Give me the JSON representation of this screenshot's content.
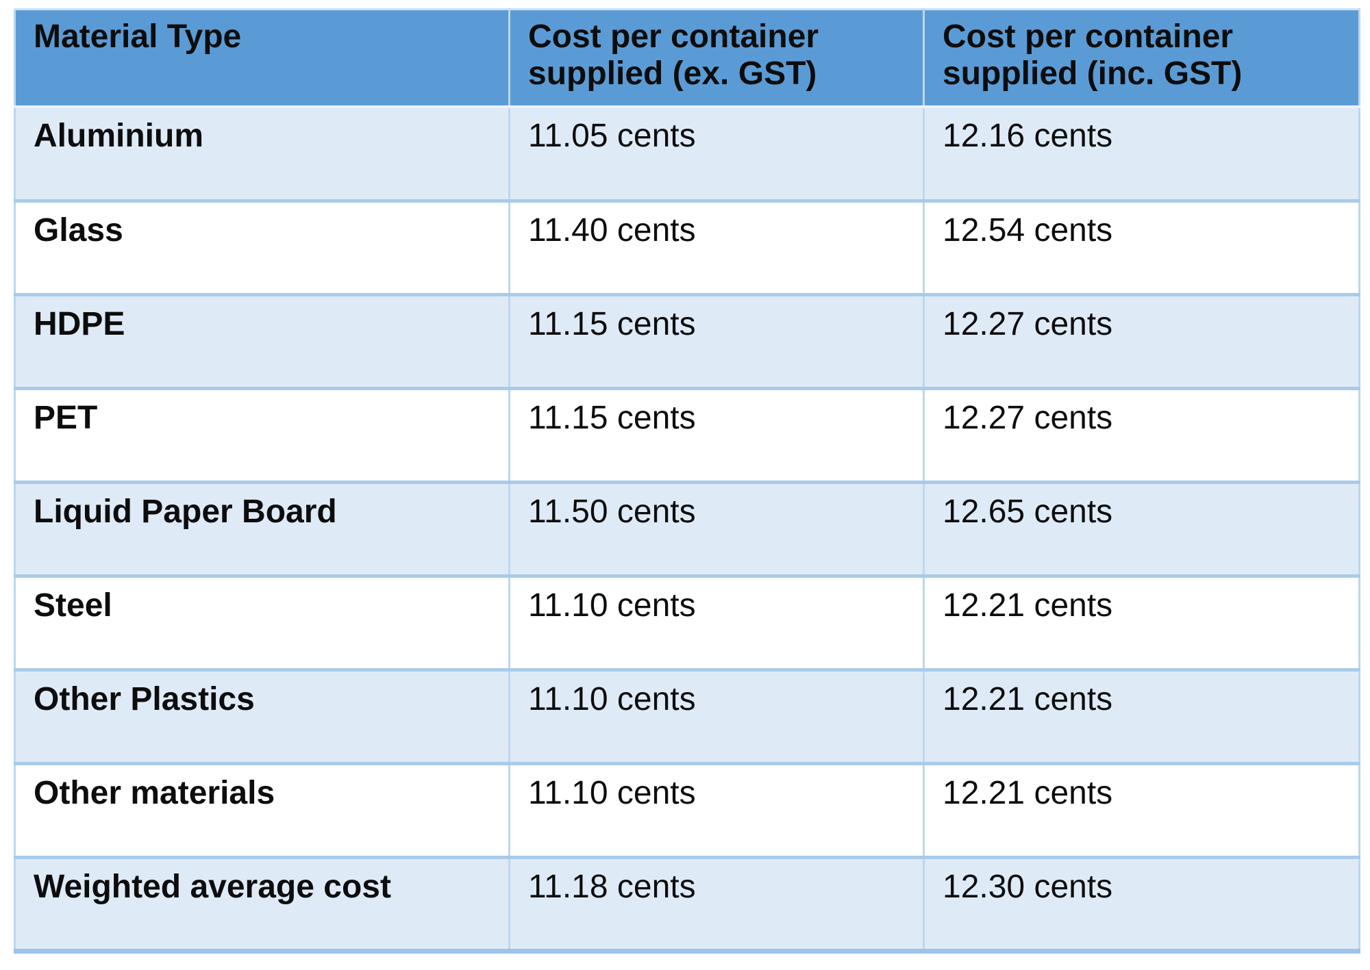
{
  "colors": {
    "header_bg": "#5B9BD5",
    "row_alt_bg": "#DEEBF7",
    "row_bg": "#FFFFFF",
    "border_light": "#BDD7EE",
    "border_strong": "#9DC3E6",
    "text": "#0D0D0D"
  },
  "chart_data": {
    "type": "table",
    "title": "",
    "columns": [
      "Material Type",
      "Cost per container supplied (ex. GST)",
      "Cost per container supplied (inc. GST)"
    ],
    "rows": [
      [
        "Aluminium",
        "11.05 cents",
        "12.16 cents"
      ],
      [
        "Glass",
        "11.40 cents",
        "12.54 cents"
      ],
      [
        "HDPE",
        "11.15 cents",
        "12.27 cents"
      ],
      [
        "PET",
        "11.15 cents",
        "12.27 cents"
      ],
      [
        "Liquid Paper Board",
        "11.50 cents",
        "12.65 cents"
      ],
      [
        "Steel",
        "11.10 cents",
        "12.21 cents"
      ],
      [
        "Other Plastics",
        "11.10 cents",
        "12.21 cents"
      ],
      [
        "Other materials",
        "11.10 cents",
        "12.21 cents"
      ],
      [
        "Weighted average cost",
        "11.18 cents",
        "12.30 cents"
      ]
    ],
    "numeric": {
      "categories": [
        "Aluminium",
        "Glass",
        "HDPE",
        "PET",
        "Liquid Paper Board",
        "Steel",
        "Other Plastics",
        "Other materials",
        "Weighted average cost"
      ],
      "series": [
        {
          "name": "Cost per container supplied (ex. GST), cents",
          "values": [
            11.05,
            11.4,
            11.15,
            11.15,
            11.5,
            11.1,
            11.1,
            11.1,
            11.18
          ]
        },
        {
          "name": "Cost per container supplied (inc. GST), cents",
          "values": [
            12.16,
            12.54,
            12.27,
            12.27,
            12.65,
            12.21,
            12.21,
            12.21,
            12.3
          ]
        }
      ]
    }
  }
}
